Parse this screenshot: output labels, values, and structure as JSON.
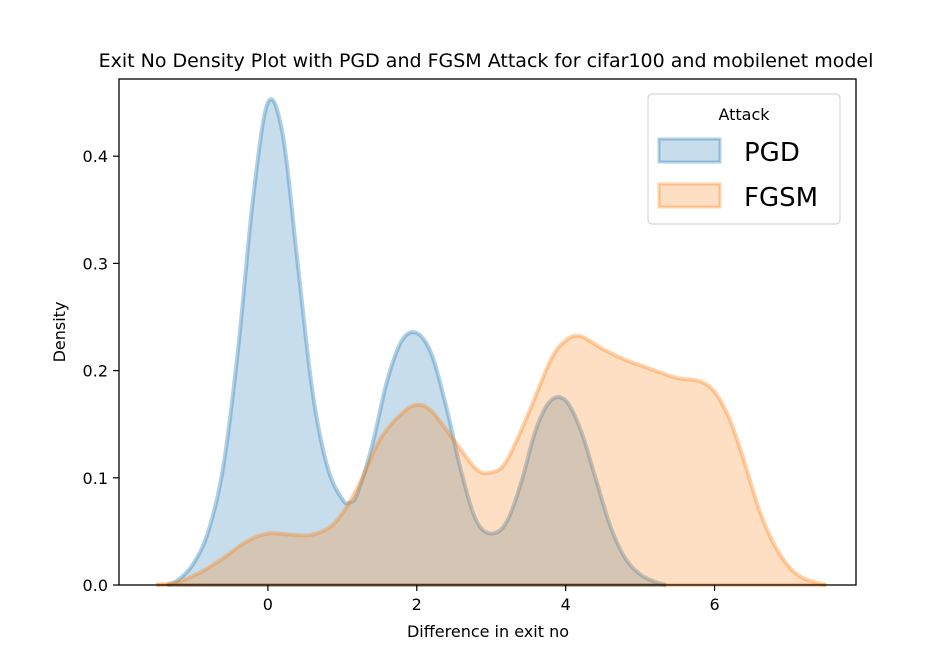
{
  "chart_data": {
    "type": "area",
    "title": "Exit No Density Plot with PGD and FGSM Attack for cifar100 and  mobilenet model",
    "xlabel": "Difference in exit no",
    "ylabel": "Density",
    "xlim": [
      -2.0,
      7.9
    ],
    "ylim": [
      0,
      0.472
    ],
    "xticks": [
      0,
      2,
      4,
      6
    ],
    "yticks": [
      0.0,
      0.1,
      0.2,
      0.3,
      0.4
    ],
    "ytick_labels": [
      "0.0",
      "0.1",
      "0.2",
      "0.3",
      "0.4"
    ],
    "grid": false,
    "legend": {
      "title": "Attack",
      "placement": "top-right"
    },
    "series": [
      {
        "name": "PGD",
        "color": "#1f77b4",
        "x": [
          -1.35,
          -1.2,
          -1.0,
          -0.8,
          -0.6,
          -0.4,
          -0.2,
          0.0,
          0.2,
          0.4,
          0.6,
          0.8,
          1.0,
          1.1,
          1.2,
          1.4,
          1.6,
          1.8,
          2.0,
          2.2,
          2.4,
          2.6,
          2.8,
          3.0,
          3.2,
          3.4,
          3.6,
          3.8,
          4.0,
          4.2,
          4.4,
          4.6,
          4.8,
          5.0,
          5.2,
          5.35
        ],
        "y": [
          0.0,
          0.005,
          0.02,
          0.05,
          0.11,
          0.22,
          0.36,
          0.45,
          0.42,
          0.3,
          0.18,
          0.11,
          0.08,
          0.077,
          0.085,
          0.13,
          0.19,
          0.228,
          0.235,
          0.215,
          0.165,
          0.105,
          0.06,
          0.048,
          0.058,
          0.095,
          0.145,
          0.172,
          0.172,
          0.145,
          0.1,
          0.055,
          0.025,
          0.01,
          0.003,
          0.0
        ]
      },
      {
        "name": "FGSM",
        "color": "#ff7f0e",
        "x": [
          -1.5,
          -1.2,
          -0.9,
          -0.6,
          -0.3,
          0.0,
          0.3,
          0.6,
          0.9,
          1.2,
          1.5,
          1.8,
          2.0,
          2.2,
          2.5,
          2.8,
          3.0,
          3.2,
          3.5,
          3.8,
          4.0,
          4.2,
          4.5,
          4.8,
          5.0,
          5.2,
          5.5,
          5.8,
          6.0,
          6.2,
          6.4,
          6.6,
          6.8,
          7.0,
          7.2,
          7.5
        ],
        "y": [
          0.0,
          0.003,
          0.012,
          0.025,
          0.04,
          0.048,
          0.047,
          0.047,
          0.058,
          0.09,
          0.135,
          0.16,
          0.168,
          0.162,
          0.135,
          0.108,
          0.105,
          0.115,
          0.16,
          0.21,
          0.228,
          0.232,
          0.22,
          0.21,
          0.205,
          0.2,
          0.193,
          0.19,
          0.18,
          0.155,
          0.115,
          0.07,
          0.038,
          0.017,
          0.006,
          0.0
        ]
      }
    ]
  }
}
